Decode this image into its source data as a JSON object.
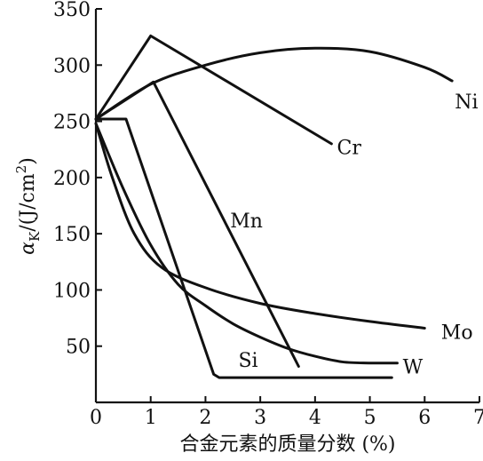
{
  "chart_data": {
    "type": "line",
    "title": "",
    "xlabel": "合金元素的质量分数 (%)",
    "ylabel_symbol": "α",
    "ylabel_subscript": "K",
    "ylabel_unit_prefix": "/(J/cm",
    "ylabel_unit_power": "2",
    "ylabel_unit_suffix": ")",
    "xlim": [
      0,
      7
    ],
    "ylim": [
      0,
      350
    ],
    "xticks": [
      0,
      1,
      2,
      3,
      4,
      5,
      6,
      7
    ],
    "yticks": [
      50,
      100,
      150,
      200,
      250,
      300,
      350
    ],
    "grid": false,
    "legend": "inline labels",
    "series": [
      {
        "name": "Ni",
        "smooth": true,
        "points": [
          [
            0,
            252
          ],
          [
            1,
            283
          ],
          [
            2,
            300
          ],
          [
            3,
            311
          ],
          [
            4,
            315
          ],
          [
            5,
            312
          ],
          [
            6,
            298
          ],
          [
            6.5,
            286
          ]
        ],
        "label_at": [
          6.55,
          268
        ]
      },
      {
        "name": "Cr",
        "points": [
          [
            0,
            252
          ],
          [
            1,
            326
          ],
          [
            4.3,
            230
          ]
        ],
        "label_at": [
          4.4,
          227
        ]
      },
      {
        "name": "Mn",
        "points": [
          [
            0,
            252
          ],
          [
            1.05,
            285
          ],
          [
            3.7,
            32
          ]
        ],
        "label_at": [
          2.45,
          162
        ]
      },
      {
        "name": "Mo",
        "smooth": true,
        "points": [
          [
            0,
            248
          ],
          [
            0.3,
            200
          ],
          [
            0.7,
            150
          ],
          [
            1.2,
            120
          ],
          [
            2,
            102
          ],
          [
            3,
            88
          ],
          [
            4,
            79
          ],
          [
            5,
            72
          ],
          [
            6,
            66
          ]
        ],
        "label_at": [
          6.3,
          63
        ]
      },
      {
        "name": "W",
        "smooth": true,
        "points": [
          [
            0,
            248
          ],
          [
            0.5,
            190
          ],
          [
            1,
            140
          ],
          [
            1.5,
            105
          ],
          [
            2,
            86
          ],
          [
            2.5,
            70
          ],
          [
            3,
            58
          ],
          [
            3.5,
            48
          ],
          [
            4,
            41
          ],
          [
            4.5,
            36
          ],
          [
            5,
            35
          ],
          [
            5.5,
            35
          ]
        ],
        "label_at": [
          5.6,
          32
        ]
      },
      {
        "name": "Si",
        "points": [
          [
            0,
            252
          ],
          [
            0.55,
            252
          ],
          [
            2.15,
            25
          ],
          [
            2.25,
            22
          ],
          [
            5.4,
            22
          ]
        ],
        "label_at": [
          2.6,
          38
        ]
      }
    ]
  }
}
